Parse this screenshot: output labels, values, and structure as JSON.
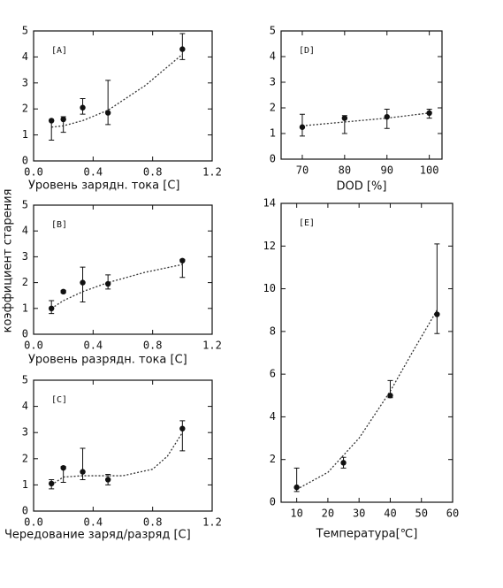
{
  "chart_data": [
    {
      "type": "scatter",
      "annotation": "[A]",
      "ylabel": "коэффициент старения",
      "xlabel": "Уровень зарядн. тока [C]",
      "x": [
        0.12,
        0.2,
        0.33,
        0.5,
        1.0
      ],
      "values": [
        1.55,
        1.6,
        2.05,
        1.85,
        4.3
      ],
      "err_low": [
        0.8,
        1.1,
        1.8,
        1.4,
        3.9
      ],
      "err_high": [
        1.55,
        1.7,
        2.4,
        3.1,
        4.9
      ],
      "curve_x": [
        0.12,
        0.2,
        0.33,
        0.5,
        0.75,
        1.0
      ],
      "curve_y": [
        1.3,
        1.35,
        1.55,
        1.95,
        2.9,
        4.1
      ],
      "xlim": [
        0,
        1.2
      ],
      "ylim": [
        0,
        5
      ],
      "xticks": [
        {
          "value": 0,
          "label": "0.0"
        },
        0.4,
        0.8,
        1.2
      ],
      "yticks": [
        0,
        1,
        2,
        3,
        4,
        5
      ]
    },
    {
      "type": "scatter",
      "annotation": "[B]",
      "xlabel": "Уровень разрядн. тока [C]",
      "x": [
        0.12,
        0.2,
        0.33,
        0.5,
        1.0
      ],
      "values": [
        1.0,
        1.65,
        2.0,
        1.95,
        2.85
      ],
      "err_low": [
        0.8,
        1.6,
        1.25,
        1.75,
        2.2
      ],
      "err_high": [
        1.3,
        1.7,
        2.6,
        2.3,
        2.9
      ],
      "curve_x": [
        0.12,
        0.2,
        0.33,
        0.5,
        0.75,
        1.0
      ],
      "curve_y": [
        1.0,
        1.3,
        1.65,
        2.0,
        2.4,
        2.7
      ],
      "xlim": [
        0,
        1.2
      ],
      "ylim": [
        0,
        5
      ],
      "xticks": [
        {
          "value": 0,
          "label": "0.0"
        },
        0.4,
        0.8,
        1.2
      ],
      "yticks": [
        0,
        1,
        2,
        3,
        4,
        5
      ]
    },
    {
      "type": "scatter",
      "annotation": "[C]",
      "xlabel": "Чередование заряд/разряд [C]",
      "x": [
        0.12,
        0.2,
        0.33,
        0.5,
        1.0
      ],
      "values": [
        1.05,
        1.65,
        1.5,
        1.2,
        3.15
      ],
      "err_low": [
        0.85,
        1.1,
        1.2,
        1.0,
        2.3
      ],
      "err_high": [
        1.2,
        1.7,
        2.4,
        1.4,
        3.45
      ],
      "curve_x": [
        0.12,
        0.2,
        0.33,
        0.6,
        0.8,
        0.9,
        1.0
      ],
      "curve_y": [
        1.0,
        1.3,
        1.35,
        1.35,
        1.6,
        2.1,
        3.0
      ],
      "xlim": [
        0,
        1.2
      ],
      "ylim": [
        0,
        5
      ],
      "xticks": [
        {
          "value": 0,
          "label": "0.0"
        },
        0.4,
        0.8,
        1.2
      ],
      "yticks": [
        0,
        1,
        2,
        3,
        4,
        5
      ]
    },
    {
      "type": "scatter",
      "annotation": "[D]",
      "xlabel": "DOD [%]",
      "x": [
        70,
        80,
        90,
        100
      ],
      "values": [
        1.25,
        1.6,
        1.65,
        1.8
      ],
      "err_low": [
        0.9,
        1.0,
        1.2,
        1.6
      ],
      "err_high": [
        1.75,
        1.7,
        1.95,
        1.95
      ],
      "curve_x": [
        70,
        80,
        90,
        100
      ],
      "curve_y": [
        1.3,
        1.45,
        1.6,
        1.8
      ],
      "xlim": [
        65,
        103
      ],
      "ylim": [
        0,
        5
      ],
      "xticks": [
        70,
        80,
        90,
        100
      ],
      "yticks": [
        0,
        1,
        2,
        3,
        4,
        5
      ]
    },
    {
      "type": "scatter",
      "annotation": "[E]",
      "xlabel": "Температура[℃]",
      "x": [
        10,
        25,
        40,
        55
      ],
      "values": [
        0.7,
        1.85,
        5.0,
        8.8
      ],
      "err_low": [
        0.5,
        1.6,
        4.9,
        7.9
      ],
      "err_high": [
        1.6,
        2.1,
        5.7,
        12.1
      ],
      "curve_x": [
        10,
        20,
        30,
        40,
        47,
        55
      ],
      "curve_y": [
        0.6,
        1.4,
        3.0,
        5.2,
        7.0,
        9.0
      ],
      "xlim": [
        5,
        60
      ],
      "ylim": [
        0,
        14
      ],
      "xticks": [
        10,
        20,
        30,
        40,
        50,
        60
      ],
      "yticks": [
        0,
        2,
        4,
        6,
        8,
        10,
        12,
        14
      ]
    }
  ]
}
